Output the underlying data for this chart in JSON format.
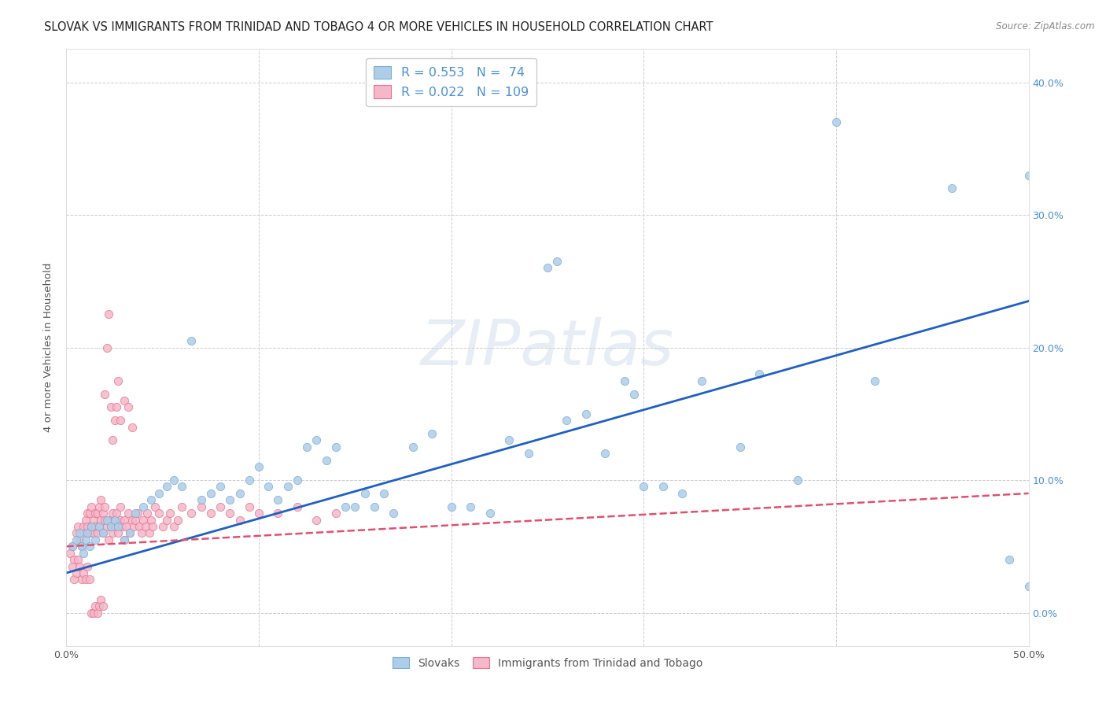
{
  "title": "SLOVAK VS IMMIGRANTS FROM TRINIDAD AND TOBAGO 4 OR MORE VEHICLES IN HOUSEHOLD CORRELATION CHART",
  "source": "Source: ZipAtlas.com",
  "ylabel": "4 or more Vehicles in Household",
  "xlim": [
    0.0,
    0.5
  ],
  "ylim": [
    -0.025,
    0.425
  ],
  "xticks": [
    0.0,
    0.1,
    0.2,
    0.3,
    0.4,
    0.5
  ],
  "xticklabels": [
    "0.0%",
    "",
    "",
    "",
    "",
    "50.0%"
  ],
  "right_yticks": [
    0.0,
    0.1,
    0.2,
    0.3,
    0.4
  ],
  "right_yticklabels": [
    "0.0%",
    "10.0%",
    "20.0%",
    "30.0%",
    "40.0%"
  ],
  "legend_entries": [
    {
      "label": "Slovaks",
      "color": "#aecde8",
      "R": 0.553,
      "N": 74
    },
    {
      "label": "Immigrants from Trinidad and Tobago",
      "color": "#f4b8c8",
      "R": 0.022,
      "N": 109
    }
  ],
  "blue_scatter_x": [
    0.003,
    0.005,
    0.007,
    0.008,
    0.009,
    0.01,
    0.011,
    0.012,
    0.013,
    0.015,
    0.017,
    0.019,
    0.021,
    0.023,
    0.025,
    0.027,
    0.03,
    0.033,
    0.036,
    0.04,
    0.044,
    0.048,
    0.052,
    0.056,
    0.06,
    0.065,
    0.07,
    0.075,
    0.08,
    0.085,
    0.09,
    0.095,
    0.1,
    0.105,
    0.11,
    0.115,
    0.12,
    0.125,
    0.13,
    0.135,
    0.14,
    0.145,
    0.15,
    0.155,
    0.16,
    0.165,
    0.17,
    0.18,
    0.19,
    0.2,
    0.21,
    0.22,
    0.23,
    0.24,
    0.25,
    0.255,
    0.26,
    0.27,
    0.28,
    0.29,
    0.295,
    0.3,
    0.31,
    0.32,
    0.33,
    0.35,
    0.36,
    0.38,
    0.4,
    0.42,
    0.46,
    0.49,
    0.5,
    0.5
  ],
  "blue_scatter_y": [
    0.05,
    0.055,
    0.06,
    0.05,
    0.045,
    0.055,
    0.06,
    0.05,
    0.065,
    0.055,
    0.065,
    0.06,
    0.07,
    0.065,
    0.07,
    0.065,
    0.055,
    0.06,
    0.075,
    0.08,
    0.085,
    0.09,
    0.095,
    0.1,
    0.095,
    0.205,
    0.085,
    0.09,
    0.095,
    0.085,
    0.09,
    0.1,
    0.11,
    0.095,
    0.085,
    0.095,
    0.1,
    0.125,
    0.13,
    0.115,
    0.125,
    0.08,
    0.08,
    0.09,
    0.08,
    0.09,
    0.075,
    0.125,
    0.135,
    0.08,
    0.08,
    0.075,
    0.13,
    0.12,
    0.26,
    0.265,
    0.145,
    0.15,
    0.12,
    0.175,
    0.165,
    0.095,
    0.095,
    0.09,
    0.175,
    0.125,
    0.18,
    0.1,
    0.37,
    0.175,
    0.32,
    0.04,
    0.33,
    0.02
  ],
  "pink_scatter_x": [
    0.002,
    0.003,
    0.004,
    0.005,
    0.006,
    0.007,
    0.008,
    0.009,
    0.01,
    0.01,
    0.011,
    0.011,
    0.012,
    0.012,
    0.013,
    0.013,
    0.014,
    0.014,
    0.015,
    0.015,
    0.016,
    0.016,
    0.017,
    0.017,
    0.018,
    0.018,
    0.019,
    0.019,
    0.02,
    0.02,
    0.021,
    0.022,
    0.022,
    0.023,
    0.024,
    0.024,
    0.025,
    0.025,
    0.026,
    0.027,
    0.028,
    0.028,
    0.029,
    0.03,
    0.03,
    0.031,
    0.032,
    0.033,
    0.034,
    0.035,
    0.036,
    0.037,
    0.038,
    0.039,
    0.04,
    0.041,
    0.042,
    0.043,
    0.044,
    0.045,
    0.046,
    0.048,
    0.05,
    0.052,
    0.054,
    0.056,
    0.058,
    0.06,
    0.065,
    0.07,
    0.075,
    0.08,
    0.085,
    0.09,
    0.095,
    0.1,
    0.11,
    0.12,
    0.13,
    0.14,
    0.003,
    0.004,
    0.005,
    0.006,
    0.007,
    0.008,
    0.009,
    0.01,
    0.011,
    0.012,
    0.013,
    0.014,
    0.015,
    0.016,
    0.017,
    0.018,
    0.019,
    0.02,
    0.021,
    0.022,
    0.023,
    0.024,
    0.025,
    0.026,
    0.027,
    0.028,
    0.03,
    0.032,
    0.034
  ],
  "pink_scatter_y": [
    0.045,
    0.05,
    0.04,
    0.06,
    0.065,
    0.055,
    0.05,
    0.065,
    0.06,
    0.07,
    0.065,
    0.075,
    0.06,
    0.075,
    0.065,
    0.08,
    0.07,
    0.06,
    0.065,
    0.075,
    0.06,
    0.075,
    0.065,
    0.08,
    0.07,
    0.085,
    0.075,
    0.06,
    0.07,
    0.08,
    0.065,
    0.055,
    0.07,
    0.065,
    0.075,
    0.06,
    0.07,
    0.065,
    0.075,
    0.06,
    0.07,
    0.08,
    0.065,
    0.055,
    0.07,
    0.065,
    0.075,
    0.06,
    0.07,
    0.065,
    0.07,
    0.075,
    0.065,
    0.06,
    0.07,
    0.065,
    0.075,
    0.06,
    0.07,
    0.065,
    0.08,
    0.075,
    0.065,
    0.07,
    0.075,
    0.065,
    0.07,
    0.08,
    0.075,
    0.08,
    0.075,
    0.08,
    0.075,
    0.07,
    0.08,
    0.075,
    0.075,
    0.08,
    0.07,
    0.075,
    0.035,
    0.025,
    0.03,
    0.04,
    0.035,
    0.025,
    0.03,
    0.025,
    0.035,
    0.025,
    0.0,
    0.0,
    0.005,
    0.0,
    0.005,
    0.01,
    0.005,
    0.165,
    0.2,
    0.225,
    0.155,
    0.13,
    0.145,
    0.155,
    0.175,
    0.145,
    0.16,
    0.155,
    0.14
  ],
  "blue_line_x": [
    0.0,
    0.5
  ],
  "blue_line_y": [
    0.03,
    0.235
  ],
  "pink_line_x": [
    0.0,
    0.5
  ],
  "pink_line_y": [
    0.05,
    0.09
  ],
  "watermark": "ZIPatlas",
  "background_color": "#ffffff",
  "scatter_blue_color": "#aecde8",
  "scatter_pink_color": "#f4b8c8",
  "scatter_blue_edge": "#7aaed4",
  "scatter_pink_edge": "#e87090",
  "line_blue_color": "#2060c0",
  "line_pink_color": "#e05070",
  "grid_color": "#c8c8c8",
  "title_color": "#222222",
  "axis_color": "#555555",
  "right_axis_blue": "#4a90d9",
  "title_fontsize": 10.5,
  "axis_label_fontsize": 9.5,
  "tick_fontsize": 9
}
